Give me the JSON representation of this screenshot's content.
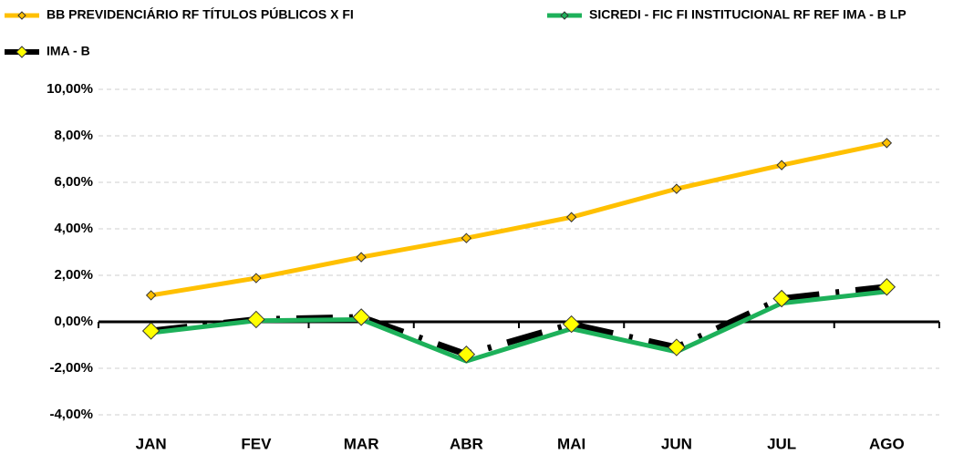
{
  "chart_data": {
    "type": "line",
    "categories": [
      "JAN",
      "FEV",
      "MAR",
      "ABR",
      "MAI",
      "JUN",
      "JUL",
      "AGO"
    ],
    "series": [
      {
        "name": "BB PREVIDENCIÁRIO RF TÍTULOS PÚBLICOS X FI",
        "color": "#FFC000",
        "marker": "#FFC000",
        "values": [
          1.14,
          1.88,
          2.78,
          3.6,
          4.5,
          5.72,
          6.74,
          7.69
        ]
      },
      {
        "name": "SICREDI - FIC FI INSTITUCIONAL RF REF IMA - B LP",
        "color": "#1DB15A",
        "marker": "#1DB15A",
        "values": [
          -0.47,
          0.05,
          0.1,
          -1.69,
          -0.3,
          -1.29,
          0.8,
          1.3
        ]
      },
      {
        "name": "IMA - B",
        "color": "#000000",
        "marker": "#FFFF00",
        "dashed": true,
        "values": [
          -0.39,
          0.1,
          0.2,
          -1.4,
          -0.1,
          -1.1,
          1.0,
          1.5
        ]
      }
    ],
    "ylim": [
      -4,
      10
    ],
    "yticks": [
      {
        "value": -4,
        "label": "-4,00%"
      },
      {
        "value": -2,
        "label": "-2,00%"
      },
      {
        "value": 0,
        "label": "0,00%"
      },
      {
        "value": 2,
        "label": "2,00%"
      },
      {
        "value": 4,
        "label": "4,00%"
      },
      {
        "value": 6,
        "label": "6,00%"
      },
      {
        "value": 8,
        "label": "8,00%"
      },
      {
        "value": 10,
        "label": "10,00%"
      }
    ],
    "grid": true
  }
}
